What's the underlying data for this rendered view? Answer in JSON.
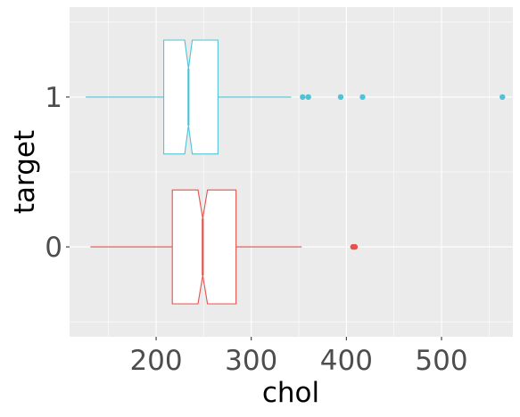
{
  "chart_data": {
    "type": "boxplot",
    "orientation": "horizontal",
    "notched": true,
    "xlabel": "chol",
    "ylabel": "target",
    "xlim": [
      109,
      575
    ],
    "ylim": [
      -0.6,
      1.6
    ],
    "x_ticks": [
      200,
      300,
      400,
      500
    ],
    "x_tick_labels": [
      "200",
      "300",
      "400",
      "500"
    ],
    "y_ticks": [
      0,
      1
    ],
    "y_tick_labels": [
      "0",
      "1"
    ],
    "grid": true,
    "legend": "none",
    "series": [
      {
        "category": "0",
        "color": "#e5524a",
        "min": 131,
        "q1": 217,
        "median": 249,
        "q3": 284,
        "max": 353,
        "notch_low": 244,
        "notch_high": 254,
        "outliers": [
          407,
          409
        ]
      },
      {
        "category": "1",
        "color": "#4fc3d6",
        "min": 126,
        "q1": 208,
        "median": 234,
        "q3": 265,
        "max": 342,
        "notch_low": 230,
        "notch_high": 238,
        "outliers": [
          354,
          360,
          394,
          417,
          564
        ]
      }
    ]
  }
}
